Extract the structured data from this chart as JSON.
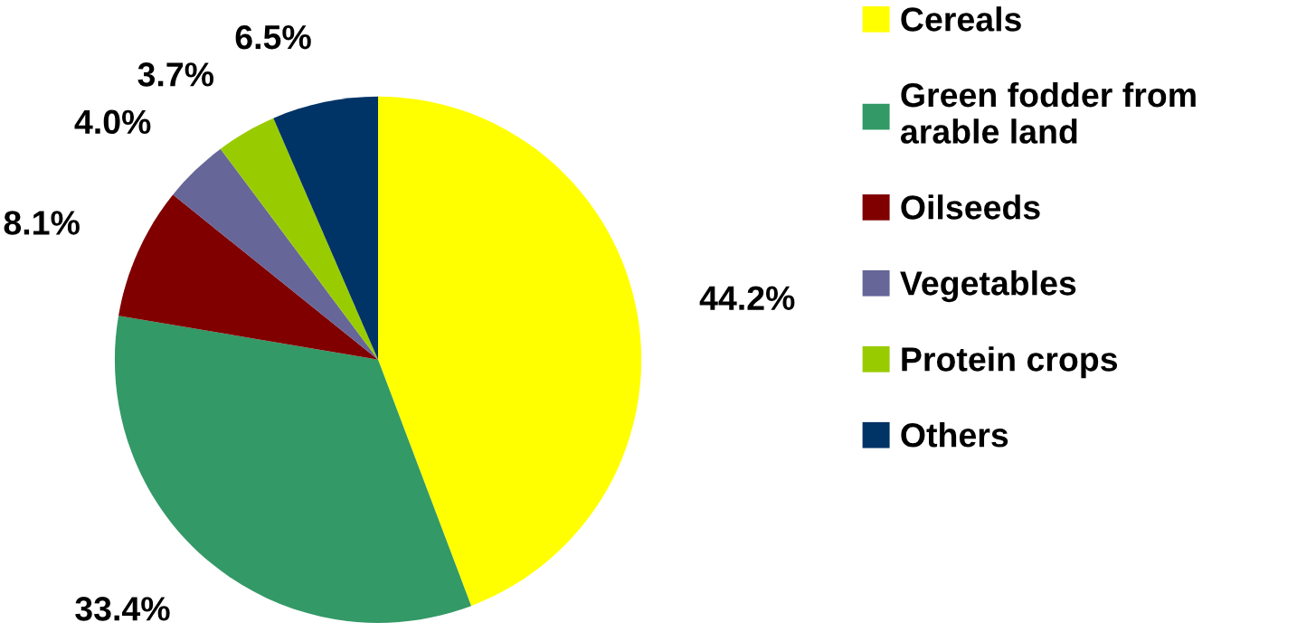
{
  "chart_data": {
    "type": "pie",
    "categories": [
      "Cereals",
      "Green fodder from\narable land",
      "Oilseeds",
      "Vegetables",
      "Protein crops",
      "Others"
    ],
    "values": [
      44.2,
      33.4,
      8.1,
      4.0,
      3.7,
      6.5
    ],
    "colors": [
      "#ffff00",
      "#339966",
      "#800000",
      "#666699",
      "#99cc00",
      "#003366"
    ],
    "value_labels": [
      "44.2%",
      "33.4%",
      "8.1%",
      "4.0%",
      "3.7%",
      "6.5%"
    ],
    "legend": "right"
  }
}
